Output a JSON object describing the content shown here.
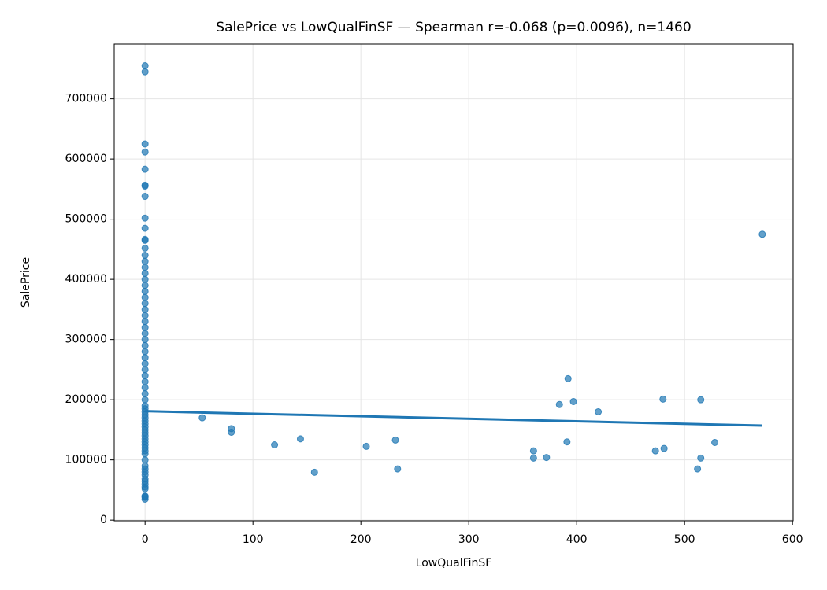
{
  "chart_data": {
    "type": "scatter",
    "title": "SalePrice vs LowQualFinSF — Spearman r=-0.068 (p=0.0096), n=1460",
    "xlabel": "LowQualFinSF",
    "ylabel": "SalePrice",
    "color": "#1f77b4",
    "grid": true,
    "xlim": [
      -28.6,
      600.6
    ],
    "xticks": [
      0,
      100,
      200,
      300,
      400,
      500,
      600
    ],
    "ylim": [
      -1105,
      791005
    ],
    "yticks": [
      0,
      100000,
      200000,
      300000,
      400000,
      500000,
      600000,
      700000
    ],
    "x": [
      0,
      0,
      0,
      0,
      0,
      0,
      0,
      0,
      0,
      0,
      0,
      0,
      0,
      0,
      0,
      0,
      0,
      0,
      0,
      0,
      0,
      0,
      0,
      0,
      0,
      0,
      0,
      0,
      0,
      0,
      0,
      0,
      0,
      0,
      0,
      0,
      0,
      0,
      0,
      0,
      0,
      0,
      0,
      0,
      0,
      0,
      0,
      0,
      0,
      0,
      0,
      0,
      0,
      0,
      0,
      0,
      0,
      0,
      0,
      0,
      0,
      0,
      0,
      0,
      0,
      0,
      0,
      0,
      0,
      53,
      80,
      80,
      120,
      144,
      157,
      205,
      232,
      234,
      360,
      360,
      372,
      384,
      391,
      392,
      397,
      420,
      473,
      480,
      481,
      512,
      515,
      515,
      528,
      572
    ],
    "values": [
      34900,
      37900,
      39300,
      40000,
      52000,
      55000,
      60000,
      64500,
      68500,
      75000,
      80000,
      85000,
      90000,
      100000,
      110000,
      115000,
      120000,
      125000,
      130000,
      135000,
      140000,
      145000,
      150000,
      155000,
      160000,
      165000,
      170000,
      175000,
      180000,
      185000,
      190000,
      200000,
      210000,
      220000,
      230000,
      240000,
      250000,
      260000,
      270000,
      280000,
      290000,
      300000,
      310000,
      320000,
      330000,
      340000,
      350000,
      360000,
      370000,
      380000,
      390000,
      400000,
      410000,
      420000,
      430000,
      440000,
      451950,
      465000,
      466500,
      485000,
      501837,
      538000,
      555000,
      556581,
      582933,
      611657,
      625000,
      745000,
      755000,
      170000,
      152000,
      146000,
      125000,
      135000,
      79500,
      122500,
      133000,
      85000,
      115000,
      103000,
      104000,
      192000,
      130000,
      235000,
      197000,
      180000,
      115000,
      201000,
      119000,
      85000,
      103000,
      200000,
      129000,
      475000
    ],
    "fit": {
      "x": [
        0,
        572
      ],
      "values": [
        181000,
        157000
      ],
      "color": "#1f77b4"
    }
  }
}
